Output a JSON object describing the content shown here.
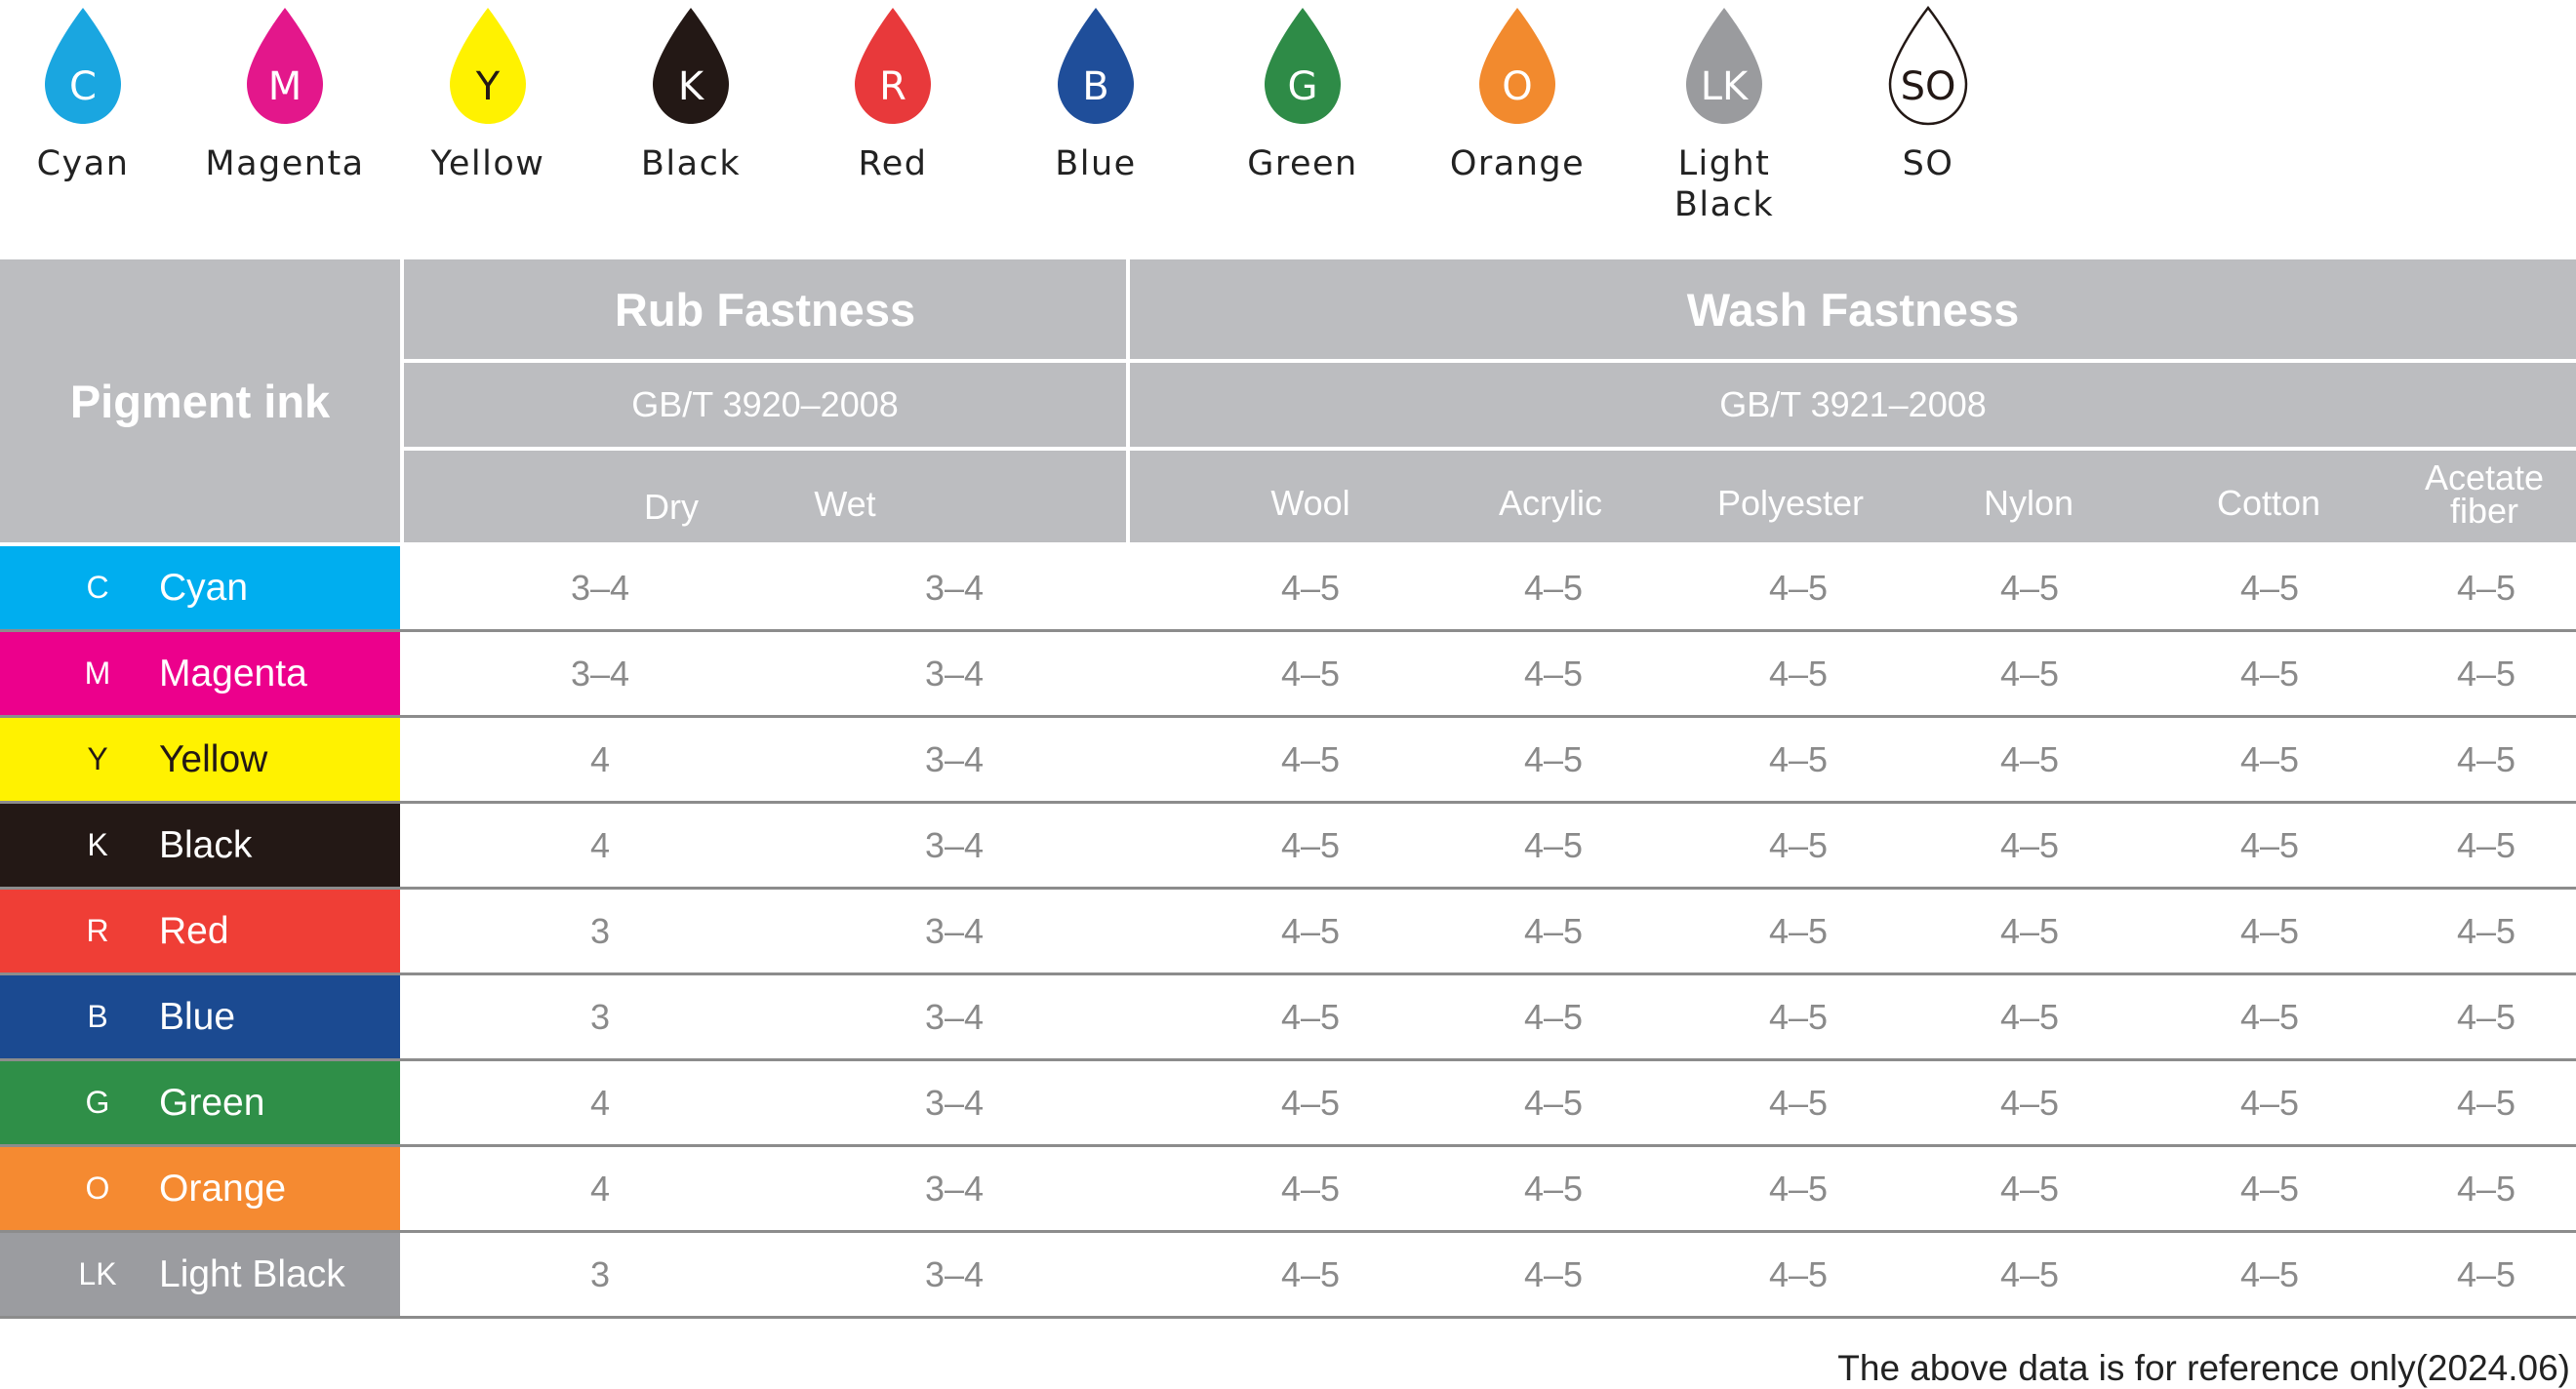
{
  "legend": [
    {
      "code": "C",
      "name": "Cyan",
      "color": "#1aa6e0"
    },
    {
      "code": "M",
      "name": "Magenta",
      "color": "#e3178b"
    },
    {
      "code": "Y",
      "name": "Yellow",
      "color": "#fff200"
    },
    {
      "code": "K",
      "name": "Black",
      "color": "#231815"
    },
    {
      "code": "R",
      "name": "Red",
      "color": "#e8393b"
    },
    {
      "code": "B",
      "name": "Blue",
      "color": "#1f4e9a"
    },
    {
      "code": "G",
      "name": "Green",
      "color": "#2e8b47"
    },
    {
      "code": "O",
      "name": "Orange",
      "color": "#f28a2e"
    },
    {
      "code": "LK",
      "name": "Light Black",
      "color": "#9a9b9e"
    },
    {
      "code": "SO",
      "name": "SO",
      "color": "#ffffff"
    }
  ],
  "table": {
    "pigment_header": "Pigment ink",
    "rub_header": "Rub Fastness",
    "wash_header": "Wash Fastness",
    "rub_standard": "GB/T 3920–2008",
    "wash_standard": "GB/T 3921–2008",
    "rub_columns": [
      "Dry",
      "Wet"
    ],
    "wash_columns": [
      "Wool",
      "Acrylic",
      "Polyester",
      "Nylon",
      "Cotton",
      "Acetate fiber"
    ],
    "rows": [
      {
        "code": "C",
        "name": "Cyan",
        "color": "#00aeef",
        "values": [
          "3–4",
          "3–4",
          "4–5",
          "4–5",
          "4–5",
          "4–5",
          "4–5",
          "4–5"
        ]
      },
      {
        "code": "M",
        "name": "Magenta",
        "color": "#ec008c",
        "values": [
          "3–4",
          "3–4",
          "4–5",
          "4–5",
          "4–5",
          "4–5",
          "4–5",
          "4–5"
        ]
      },
      {
        "code": "Y",
        "name": "Yellow",
        "color": "#fff200",
        "values": [
          "4",
          "3–4",
          "4–5",
          "4–5",
          "4–5",
          "4–5",
          "4–5",
          "4–5"
        ]
      },
      {
        "code": "K",
        "name": "Black",
        "color": "#231815",
        "values": [
          "4",
          "3–4",
          "4–5",
          "4–5",
          "4–5",
          "4–5",
          "4–5",
          "4–5"
        ]
      },
      {
        "code": "R",
        "name": "Red",
        "color": "#ef3e36",
        "values": [
          "3",
          "3–4",
          "4–5",
          "4–5",
          "4–5",
          "4–5",
          "4–5",
          "4–5"
        ]
      },
      {
        "code": "B",
        "name": "Blue",
        "color": "#1b4a91",
        "values": [
          "3",
          "3–4",
          "4–5",
          "4–5",
          "4–5",
          "4–5",
          "4–5",
          "4–5"
        ]
      },
      {
        "code": "G",
        "name": "Green",
        "color": "#2f8f48",
        "values": [
          "4",
          "3–4",
          "4–5",
          "4–5",
          "4–5",
          "4–5",
          "4–5",
          "4–5"
        ]
      },
      {
        "code": "O",
        "name": "Orange",
        "color": "#f58a31",
        "values": [
          "4",
          "3–4",
          "4–5",
          "4–5",
          "4–5",
          "4–5",
          "4–5",
          "4–5"
        ]
      },
      {
        "code": "LK",
        "name": "Light Black",
        "color": "#9b9ca0",
        "values": [
          "3",
          "3–4",
          "4–5",
          "4–5",
          "4–5",
          "4–5",
          "4–5",
          "4–5"
        ]
      }
    ]
  },
  "footnote": "The above data is for reference only(2024.06)"
}
